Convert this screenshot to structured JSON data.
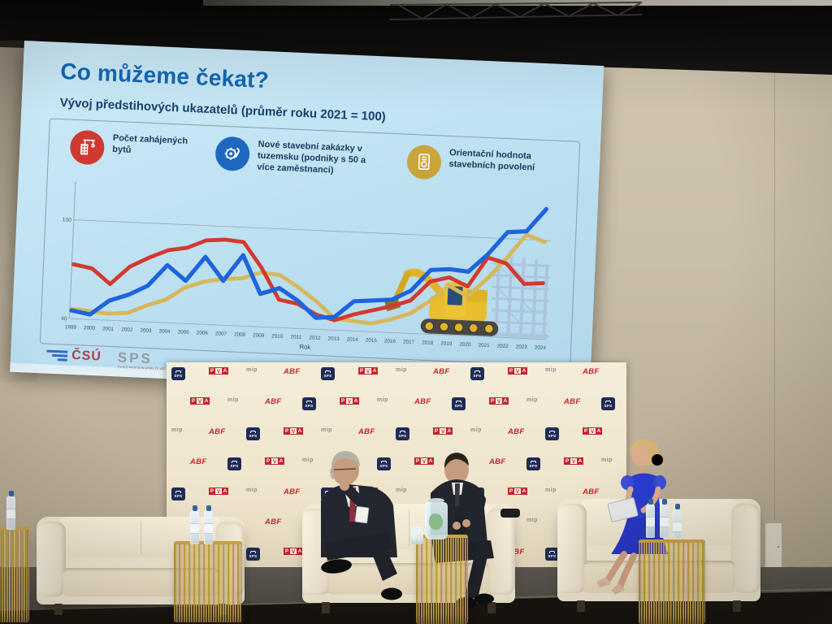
{
  "slide": {
    "title": "Co můžeme čekat?",
    "subtitle": "Vývoj předstihových ukazatelů (průměr roku 2021 = 100)",
    "legend": [
      {
        "icon": "crane-building-icon",
        "color": "#cf3a30",
        "label": "Počet zahájených bytů"
      },
      {
        "icon": "helmet-tools-icon",
        "color": "#1e68c0",
        "label": "Nové stavební zakázky v tuzemsku (podniky s 50 a více zaměstnanci)"
      },
      {
        "icon": "permit-document-icon",
        "color": "#c9a43a",
        "label": "Orientační hodnota stavebních povolení"
      }
    ],
    "chart_data": {
      "type": "line",
      "x": [
        1999,
        2000,
        2001,
        2002,
        2003,
        2004,
        2005,
        2006,
        2007,
        2008,
        2009,
        2010,
        2011,
        2012,
        2013,
        2014,
        2015,
        2016,
        2017,
        2018,
        2019,
        2020,
        2021,
        2022,
        2023,
        2024
      ],
      "xlabel": "Rok",
      "ylim": [
        40,
        122
      ],
      "yticks": [
        40,
        100
      ],
      "grid": "horizontal-gridline-at-100",
      "legend_position": "top",
      "series": [
        {
          "name": "Počet zahájených bytů",
          "color": "#d23a2e",
          "values": [
            73,
            71,
            62,
            73,
            79,
            84,
            86,
            91,
            92,
            91,
            76,
            57,
            55,
            49,
            46,
            50,
            53,
            56,
            60,
            72,
            75,
            70,
            88,
            85,
            73,
            74
          ]
        },
        {
          "name": "Nové stavební zakázky v tuzemsku (podniky s 50 a více zaměstnanci)",
          "color": "#1d64dd",
          "values": [
            45,
            43,
            52,
            56,
            62,
            75,
            66,
            81,
            67,
            83,
            60,
            64,
            57,
            47,
            48,
            58,
            59,
            60,
            66,
            79,
            80,
            79,
            90,
            104,
            105,
            119
          ]
        },
        {
          "name": "Orientační hodnota stavebních povolení",
          "color": "#d6b85a",
          "values": [
            46,
            45,
            44,
            45,
            50,
            54,
            62,
            66,
            68,
            69,
            73,
            72,
            65,
            57,
            47,
            46,
            45,
            48,
            52,
            60,
            70,
            64,
            75,
            88,
            103,
            99
          ]
        }
      ]
    },
    "footer": {
      "csu": "ČSÚ",
      "sps": "SPS",
      "sps_sub": "SVAZ PODNIKATELŮ VE STAVEBNICTVÍ"
    }
  },
  "backdrop": {
    "sequence": [
      "sps",
      "pva",
      "mip",
      "abf"
    ],
    "logo_text": {
      "sps": "SPS",
      "pva": "PVA",
      "mip": "mip",
      "abf": "ABF"
    }
  },
  "colors": {
    "slide_background": "#bfe2f2",
    "backdrop_background": "#f1e9d5",
    "wall": "#c9bda7",
    "sofa": "#f1e8d2",
    "dress_blue": "#2b3cd0",
    "table_gold": "#caa24a"
  }
}
